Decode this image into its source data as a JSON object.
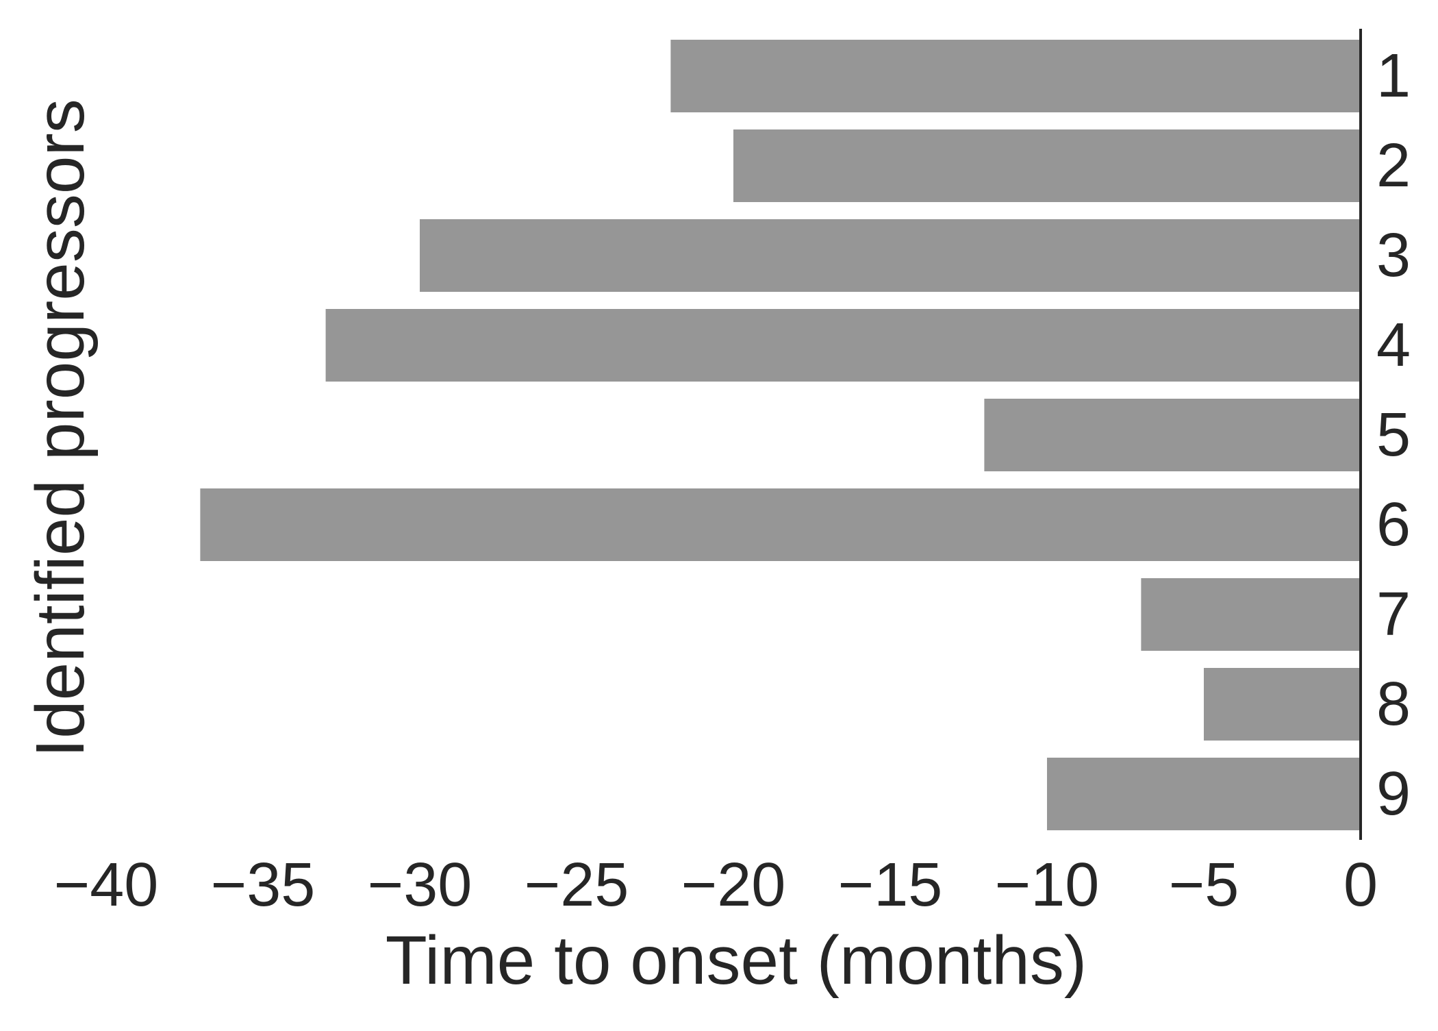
{
  "chart_data": {
    "type": "bar",
    "orientation": "horizontal",
    "categories": [
      "1",
      "2",
      "3",
      "4",
      "5",
      "6",
      "7",
      "8",
      "9"
    ],
    "values": [
      -22,
      -20,
      -30,
      -33,
      -12,
      -37,
      -7,
      -5,
      -10
    ],
    "xlabel": "Time to onset (months)",
    "ylabel": "Identified progressors",
    "xlim": [
      -40,
      0
    ],
    "xticks": [
      -40,
      -35,
      -30,
      -25,
      -20,
      -15,
      -10,
      -5,
      0
    ],
    "xtick_labels": [
      "−40",
      "−35",
      "−30",
      "−25",
      "−20",
      "−15",
      "−10",
      "−5",
      "0"
    ],
    "y_axis_position": "right",
    "bar_color": "#969696",
    "axis_color": "#262626",
    "grid": false,
    "legend": "none"
  }
}
